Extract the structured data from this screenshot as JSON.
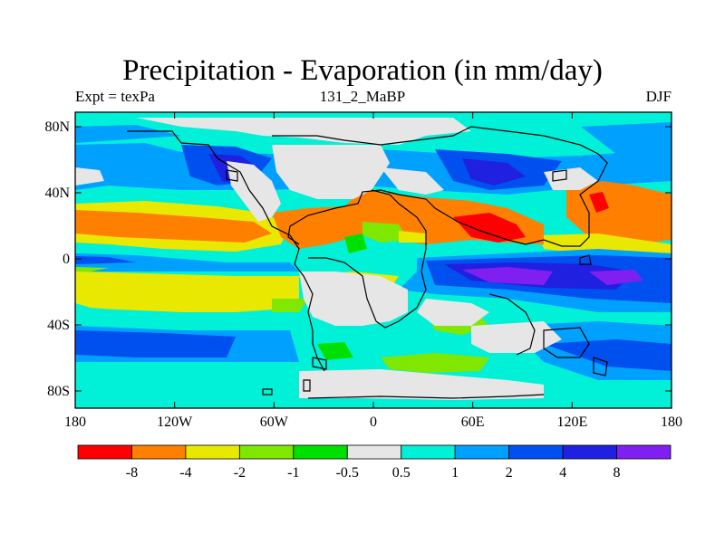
{
  "title": "Precipitation - Evaporation (in mm/day)",
  "subtitle_left": "Expt = texPa",
  "subtitle_center": "131_2_MaBP",
  "subtitle_right": "DJF",
  "y_ticks": [
    "80N",
    "40N",
    "0",
    "40S",
    "80S"
  ],
  "x_ticks": [
    "180",
    "120W",
    "60W",
    "0",
    "60E",
    "120E",
    "180"
  ],
  "colorbar": {
    "colors": [
      "#ff0000",
      "#ff8000",
      "#e8e800",
      "#80e800",
      "#00e000",
      "#e6e6e6",
      "#00f0d8",
      "#00a0ff",
      "#0050f0",
      "#2020e0",
      "#8020f0"
    ],
    "labels": [
      "-8",
      "-4",
      "-2",
      "-1",
      "-0.5",
      "0.5",
      "1",
      "2",
      "4",
      "8"
    ]
  }
}
